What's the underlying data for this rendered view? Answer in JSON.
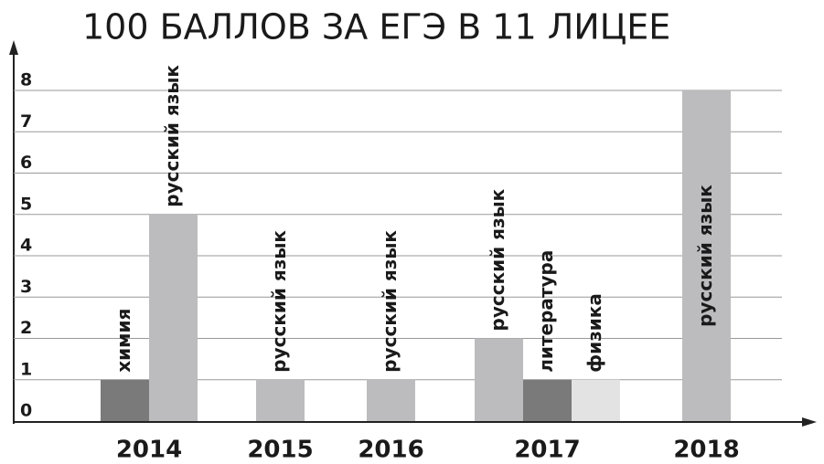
{
  "chart_data": {
    "type": "bar",
    "title": "100 БАЛЛОВ ЗА ЕГЭ В 11 ЛИЦЕЕ",
    "ylim": [
      0,
      8
    ],
    "yticks": [
      0,
      1,
      2,
      3,
      4,
      5,
      6,
      7,
      8
    ],
    "grid": true,
    "groups": [
      {
        "category": "2014",
        "bars": [
          {
            "label": "химия",
            "value": 1,
            "color": "#7a7a7a"
          },
          {
            "label": "русский язык",
            "value": 5,
            "color": "#bcbcbe"
          }
        ]
      },
      {
        "category": "2015",
        "bars": [
          {
            "label": "русский язык",
            "value": 1,
            "color": "#bcbcbe"
          }
        ]
      },
      {
        "category": "2016",
        "bars": [
          {
            "label": "русский язык",
            "value": 1,
            "color": "#bcbcbe"
          }
        ]
      },
      {
        "category": "2017",
        "bars": [
          {
            "label": "русский язык",
            "value": 2,
            "color": "#bcbcbe"
          },
          {
            "label": "литература",
            "value": 1,
            "color": "#7a7a7a"
          },
          {
            "label": "физика",
            "value": 1,
            "color": "#e3e3e3"
          }
        ]
      },
      {
        "category": "2018",
        "bars": [
          {
            "label": "русский язык",
            "value": 8,
            "color": "#bcbcbe"
          }
        ]
      }
    ]
  }
}
